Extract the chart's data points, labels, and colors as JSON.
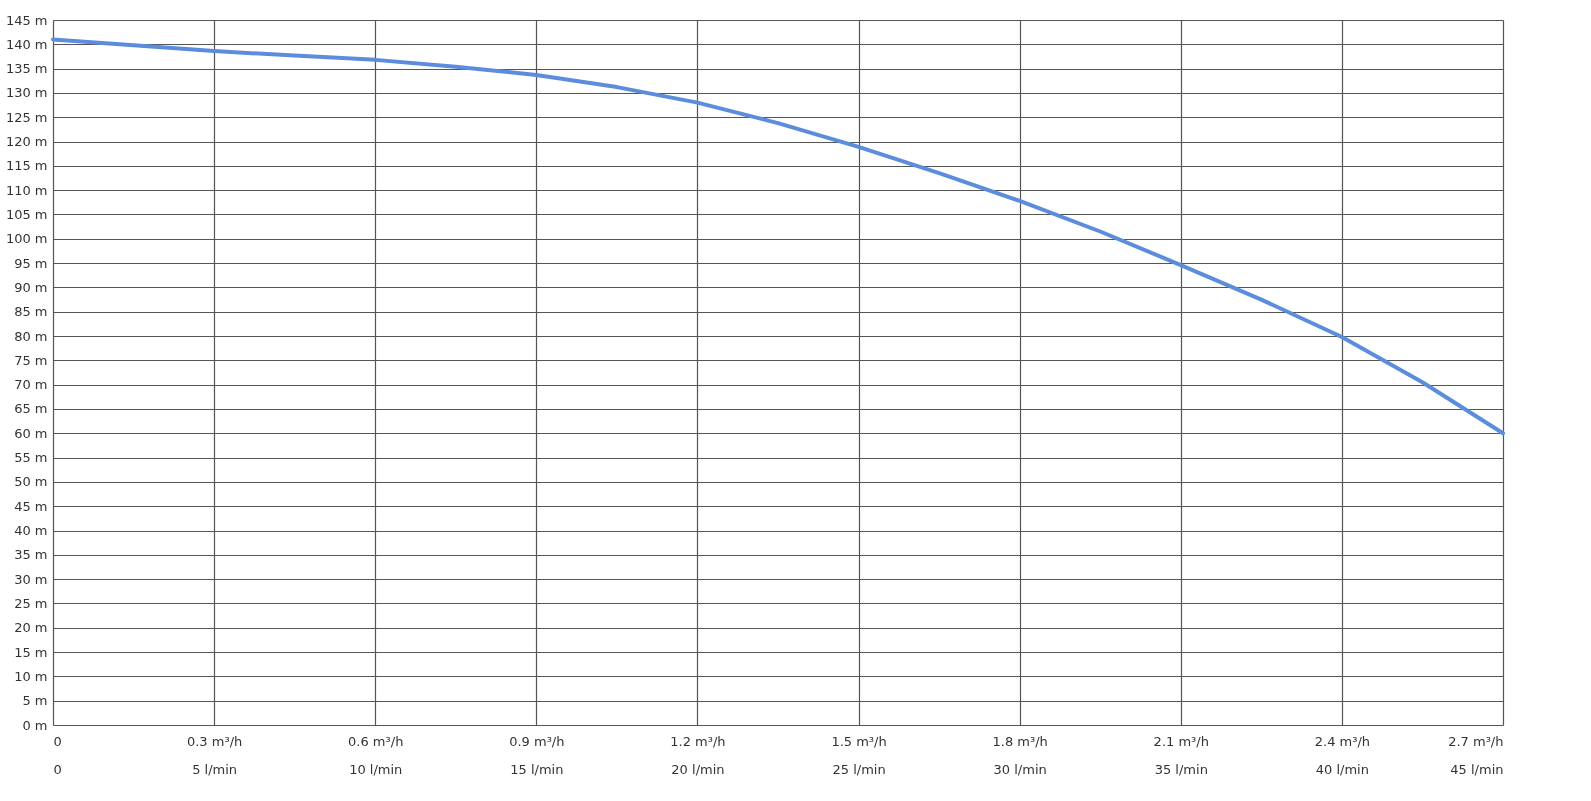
{
  "chart_data": {
    "type": "line",
    "x": [
      0,
      0.15,
      0.3,
      0.45,
      0.6,
      0.75,
      0.9,
      1.05,
      1.2,
      1.35,
      1.5,
      1.65,
      1.8,
      1.95,
      2.1,
      2.25,
      2.4,
      2.55,
      2.7
    ],
    "series": [
      {
        "color": "#5b8ddc",
        "values": [
          141,
          139.8,
          138.6,
          137.7,
          136.8,
          135.4,
          133.7,
          131.2,
          128,
          123.8,
          118.9,
          113.5,
          107.8,
          101.5,
          94.6,
          87.5,
          79.8,
          70.5,
          60
        ]
      }
    ],
    "xlim": [
      0,
      2.7
    ],
    "xticks": [
      0,
      {
        "value": 0.3,
        "label": "0.3 m³/h"
      },
      {
        "value": 0.6,
        "label": "0.6 m³/h"
      },
      {
        "value": 0.9,
        "label": "0.9 m³/h"
      },
      {
        "value": 1.2,
        "label": "1.2 m³/h"
      },
      {
        "value": 1.5,
        "label": "1.5 m³/h"
      },
      {
        "value": 1.8,
        "label": "1.8 m³/h"
      },
      {
        "value": 2.1,
        "label": "2.1 m³/h"
      },
      {
        "value": 2.4,
        "label": "2.4 m³/h"
      },
      {
        "value": 2.7,
        "label": "2.7 m³/h"
      }
    ],
    "x2lim": [
      0,
      45
    ],
    "x2ticks": [
      0,
      {
        "value": 5,
        "label": "5 l/min"
      },
      {
        "value": 10,
        "label": "10 l/min"
      },
      {
        "value": 15,
        "label": "15 l/min"
      },
      {
        "value": 20,
        "label": "20 l/min"
      },
      {
        "value": 25,
        "label": "25 l/min"
      },
      {
        "value": 30,
        "label": "30 l/min"
      },
      {
        "value": 35,
        "label": "35 l/min"
      },
      {
        "value": 40,
        "label": "40 l/min"
      },
      {
        "value": 45,
        "label": "45 l/min"
      }
    ],
    "ylim": [
      0,
      145
    ],
    "yticks": [
      {
        "value": 0,
        "label": "0 m"
      },
      {
        "value": 5,
        "label": "5 m"
      },
      {
        "value": 10,
        "label": "10 m"
      },
      {
        "value": 15,
        "label": "15 m"
      },
      {
        "value": 20,
        "label": "20 m"
      },
      {
        "value": 25,
        "label": "25 m"
      },
      {
        "value": 30,
        "label": "30 m"
      },
      {
        "value": 35,
        "label": "35 m"
      },
      {
        "value": 40,
        "label": "40 m"
      },
      {
        "value": 45,
        "label": "45 m"
      },
      {
        "value": 50,
        "label": "50 m"
      },
      {
        "value": 55,
        "label": "55 m"
      },
      {
        "value": 60,
        "label": "60 m"
      },
      {
        "value": 65,
        "label": "65 m"
      },
      {
        "value": 70,
        "label": "70 m"
      },
      {
        "value": 75,
        "label": "75 m"
      },
      {
        "value": 80,
        "label": "80 m"
      },
      {
        "value": 85,
        "label": "85 m"
      },
      {
        "value": 90,
        "label": "90 m"
      },
      {
        "value": 95,
        "label": "95 m"
      },
      {
        "value": 100,
        "label": "100 m"
      },
      {
        "value": 105,
        "label": "105 m"
      },
      {
        "value": 110,
        "label": "110 m"
      },
      {
        "value": 115,
        "label": "115 m"
      },
      {
        "value": 120,
        "label": "120 m"
      },
      {
        "value": 125,
        "label": "125 m"
      },
      {
        "value": 130,
        "label": "130 m"
      },
      {
        "value": 135,
        "label": "135 m"
      },
      {
        "value": 140,
        "label": "140 m"
      },
      {
        "value": 145,
        "label": "145 m"
      }
    ],
    "grid": true,
    "marker": "none",
    "line_style": "solid"
  }
}
